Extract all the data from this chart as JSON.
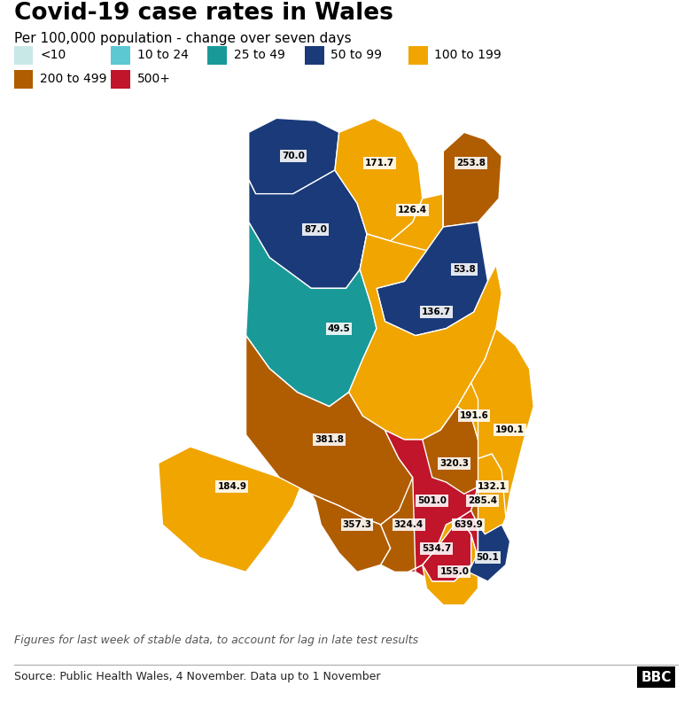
{
  "title": "Covid-19 case rates in Wales",
  "subtitle": "Per 100,000 population - change over seven days",
  "footer_italic": "Figures for last week of stable data, to account for lag in late test results",
  "footer_source": "Source: Public Health Wales, 4 November. Data up to 1 November",
  "legend_items": [
    {
      "label": "<10",
      "color": "#c8e8e8"
    },
    {
      "label": "10 to 24",
      "color": "#5bc8d2"
    },
    {
      "label": "25 to 49",
      "color": "#1a9999"
    },
    {
      "label": "50 to 99",
      "color": "#1a3a7a"
    },
    {
      "label": "100 to 199",
      "color": "#f0a500"
    },
    {
      "label": "200 to 499",
      "color": "#b05c00"
    },
    {
      "label": "500+",
      "color": "#c0152a"
    }
  ],
  "regions": {
    "Isle of Anglesey": {
      "value": "70.0",
      "color": "#1a3a7a"
    },
    "Gwynedd": {
      "value": "87.0",
      "color": "#1a3a7a"
    },
    "Conwy": {
      "value": "171.7",
      "color": "#f0a500"
    },
    "Denbighshire": {
      "value": "126.4",
      "color": "#f0a500"
    },
    "Flintshire": {
      "value": "253.8",
      "color": "#b05c00"
    },
    "Wrexham": {
      "value": "53.8",
      "color": "#1a3a7a"
    },
    "Ceredigion": {
      "value": "49.5",
      "color": "#1a9999"
    },
    "Powys": {
      "value": "136.7",
      "color": "#f0a500"
    },
    "Pembrokeshire": {
      "value": "184.9",
      "color": "#f0a500"
    },
    "Carmarthenshire": {
      "value": "381.8",
      "color": "#b05c00"
    },
    "Swansea": {
      "value": "357.3",
      "color": "#b05c00"
    },
    "Neath Port Talbot": {
      "value": "324.4",
      "color": "#b05c00"
    },
    "Bridgend": {
      "value": "534.7",
      "color": "#c0152a"
    },
    "Vale of Glamorgan": {
      "value": "155.0",
      "color": "#f0a500"
    },
    "Cardiff": {
      "value": "639.9",
      "color": "#c0152a"
    },
    "Rhondda Cynon Taf": {
      "value": "501.0",
      "color": "#c0152a"
    },
    "Merthyr Tydfil": {
      "value": "320.3",
      "color": "#b05c00"
    },
    "Caerphilly": {
      "value": "285.4",
      "color": "#b05c00"
    },
    "Blaenau Gwent": {
      "value": "191.6",
      "color": "#f0a500"
    },
    "Torfaen": {
      "value": "132.1",
      "color": "#f0a500"
    },
    "Monmouthshire": {
      "value": "190.1",
      "color": "#f0a500"
    },
    "Newport": {
      "value": "50.1",
      "color": "#1a3a7a"
    }
  },
  "background_color": "#ffffff",
  "xlim": [
    -5.4,
    -2.6
  ],
  "ylim": [
    51.3,
    53.55
  ],
  "map_aspect": 1.7
}
